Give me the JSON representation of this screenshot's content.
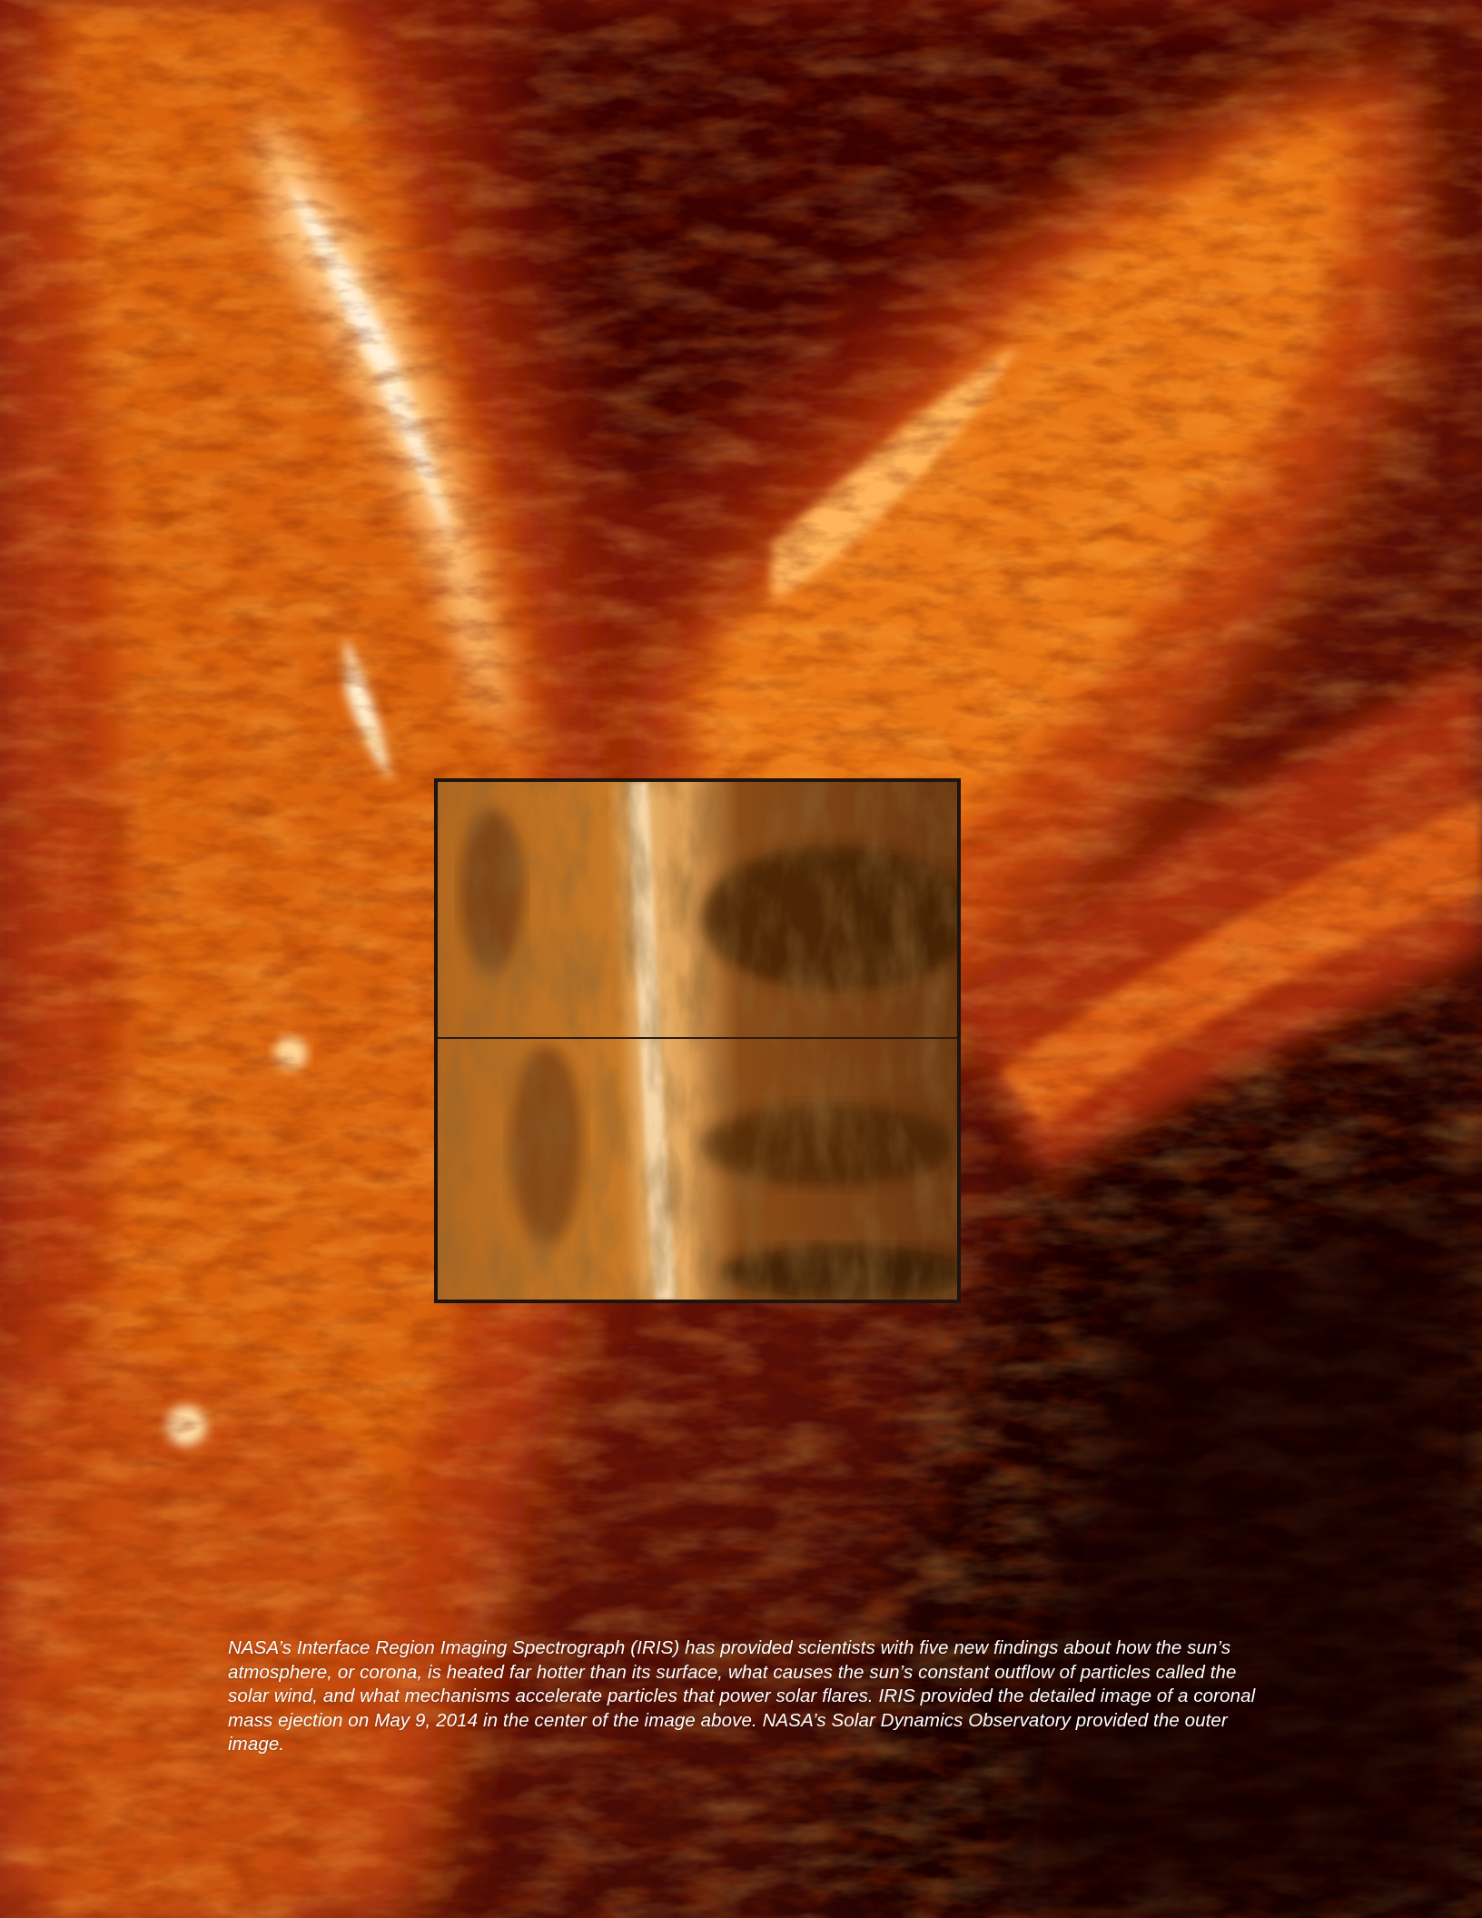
{
  "caption": {
    "text": "NASA’s Interface Region Imaging Spectrograph (IRIS) has provided scientists with five new findings about how the sun’s atmosphere, or corona, is heated far hotter than its surface, what causes the sun’s constant outflow of particles called the solar wind, and what mechanisms accelerate particles that power solar flares. IRIS provided the detailed image of a coronal mass ejection on May 9, 2014 in the center of the image above. NASA’s Solar Dynamics Observatory provided the outer image."
  },
  "colors": {
    "background_dark": "#1a0402",
    "plasma_red": "#8a1406",
    "plasma_orange": "#f07a10",
    "plasma_bright": "#ffd79a",
    "inset_tone": "#a9611f",
    "caption_text": "#ffffff"
  }
}
